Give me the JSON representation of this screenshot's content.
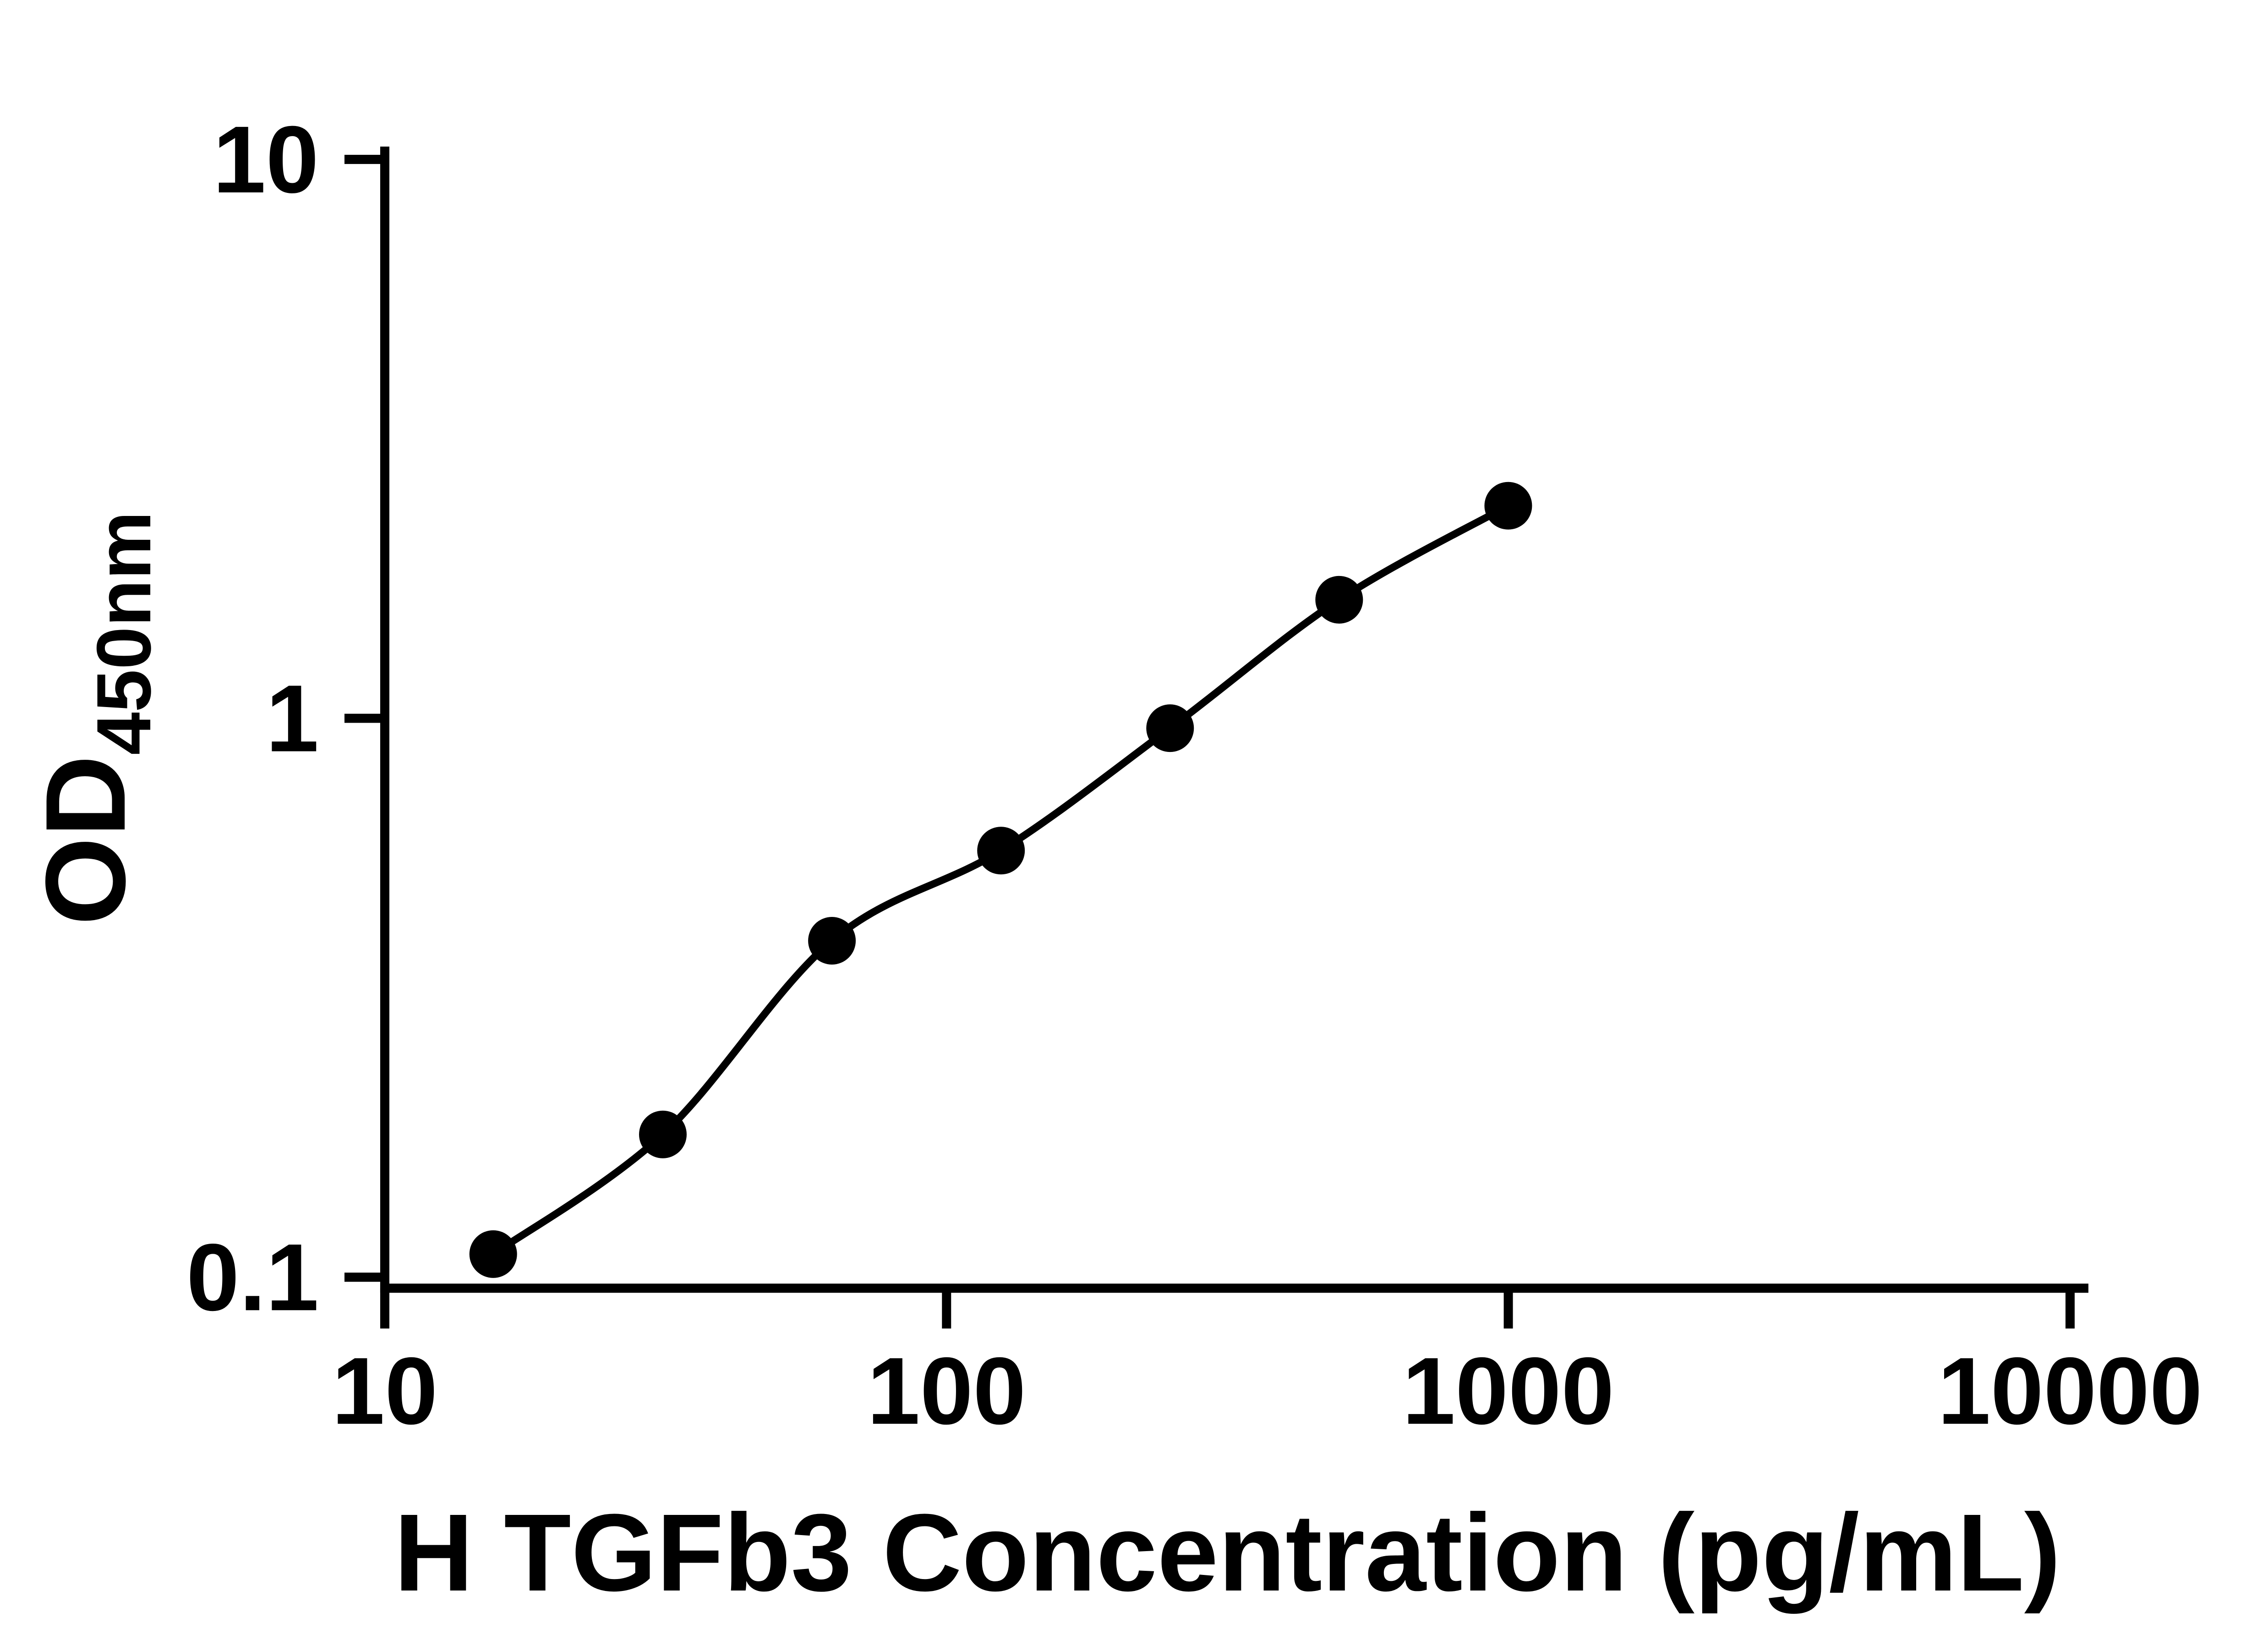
{
  "figure": {
    "background": "#ffffff",
    "axis_color": "#000000",
    "point_color": "#000000",
    "curve_color": "#000000",
    "text_color": "#000000"
  },
  "chart_data": {
    "type": "scatter",
    "title": "",
    "xlabel": "H TGFb3 Concentration (pg/mL)",
    "ylabel_main": "OD",
    "ylabel_sub": "450nm",
    "x_scale": "log10",
    "y_scale": "log10",
    "xlim": [
      10,
      10000
    ],
    "ylim": [
      0.1,
      10
    ],
    "x_tick_values": [
      10,
      100,
      1000,
      10000
    ],
    "x_tick_labels": [
      "10",
      "100",
      "1000",
      "10000"
    ],
    "y_tick_values": [
      10,
      1,
      0.1
    ],
    "y_tick_labels": [
      "10",
      "1",
      "0.1"
    ],
    "grid": false,
    "legend": false,
    "series": [
      {
        "marker": "filled-circle",
        "fit": "smooth",
        "x": [
          15.6,
          31.25,
          62.5,
          125,
          250,
          500,
          1000
        ],
        "y": [
          0.11,
          0.18,
          0.4,
          0.58,
          0.96,
          1.63,
          2.4
        ]
      }
    ]
  }
}
